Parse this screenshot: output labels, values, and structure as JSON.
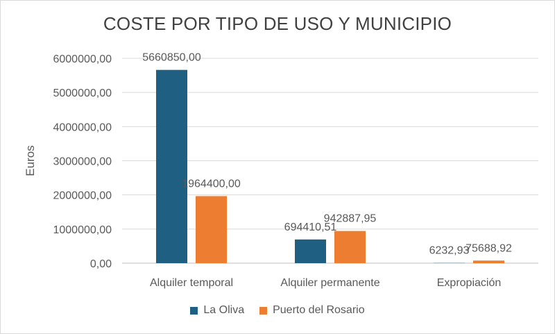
{
  "chart_data": {
    "type": "bar",
    "title": "COSTE POR TIPO DE USO Y MUNICIPIO",
    "xlabel": "",
    "ylabel": "Euros",
    "categories": [
      "Alquiler temporal",
      "Alquiler permanente",
      "Expropiación"
    ],
    "series": [
      {
        "name": "La Oliva",
        "color": "#1f5f82",
        "values": [
          5660850.0,
          694410.51,
          6232.93
        ],
        "labels": [
          "5660850,00",
          "694410,51",
          "6232,93"
        ]
      },
      {
        "name": "Puerto del Rosario",
        "color": "#ed7d31",
        "values": [
          1964400.0,
          942887.95,
          75688.92
        ],
        "labels": [
          "1964400,00",
          "942887,95",
          "75688,92"
        ]
      }
    ],
    "ylim": [
      0,
      6000000
    ],
    "yticks": [
      0,
      1000000,
      2000000,
      3000000,
      4000000,
      5000000,
      6000000
    ],
    "ytick_labels": [
      "0,00",
      "1000000,00",
      "2000000,00",
      "3000000,00",
      "4000000,00",
      "5000000,00",
      "6000000,00"
    ],
    "grid": true,
    "legend_position": "bottom"
  }
}
